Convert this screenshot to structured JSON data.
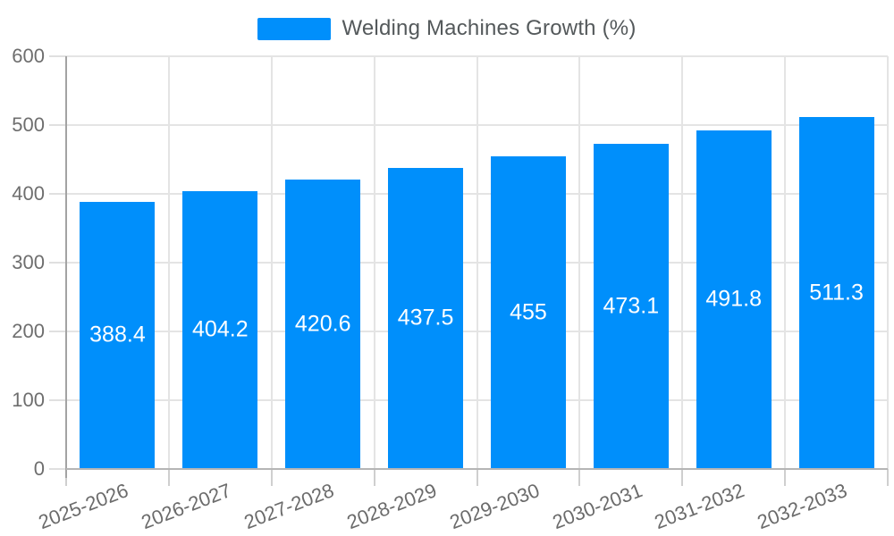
{
  "legend": {
    "label": "Welding Machines Growth (%)"
  },
  "chart_data": {
    "type": "bar",
    "title": "Welding Machines Growth (%)",
    "categories": [
      "2025-2026",
      "2026-2027",
      "2027-2028",
      "2028-2029",
      "2029-2030",
      "2030-2031",
      "2031-2032",
      "2032-2033"
    ],
    "series": [
      {
        "name": "Welding Machines Growth (%)",
        "values": [
          388.4,
          404.2,
          420.6,
          437.5,
          455,
          473.1,
          491.8,
          511.3
        ]
      }
    ],
    "value_labels": [
      "388.4",
      "404.2",
      "420.6",
      "437.5",
      "455",
      "473.1",
      "491.8",
      "511.3"
    ],
    "xlabel": "",
    "ylabel": "",
    "ylim": [
      0,
      600
    ],
    "ytick_step": 100,
    "ytick_labels": [
      "0",
      "100",
      "200",
      "300",
      "400",
      "500",
      "600"
    ],
    "grid": true,
    "legend_position": "top",
    "colors": {
      "bar": "#008FFB",
      "value_label": "#ffffff",
      "axis_label": "#6e6e6e",
      "gridline": "#e4e4e4",
      "legend_text": "#54595b"
    }
  }
}
